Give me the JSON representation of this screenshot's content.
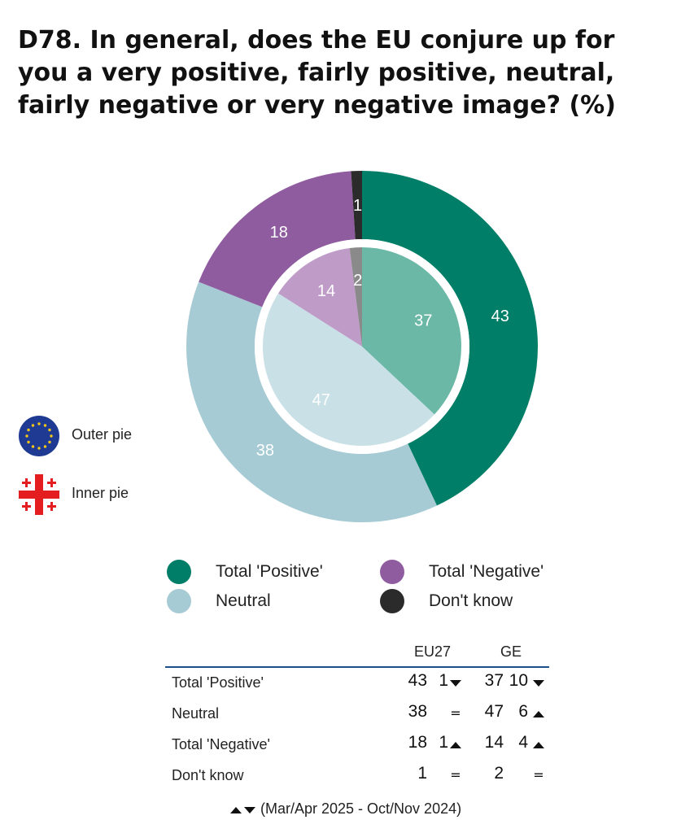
{
  "title": "D78. In general, does the EU conjure up for you a very positive, fairly positive, neutral, fairly negative or very negative image? (%)",
  "chart_data": {
    "type": "pie",
    "pie_labels": {
      "outer": "Outer pie",
      "inner": "Inner pie"
    },
    "categories": [
      "Total 'Positive'",
      "Neutral",
      "Total 'Negative'",
      "Don't know"
    ],
    "series": [
      {
        "name": "EU27",
        "values": [
          43,
          38,
          18,
          1
        ]
      },
      {
        "name": "GE",
        "values": [
          37,
          47,
          14,
          2
        ]
      }
    ],
    "colors": {
      "outer": [
        "#007E67",
        "#A7CBD4",
        "#905CA0",
        "#2B2B2B"
      ],
      "inner": [
        "#6BB8A7",
        "#C9E1E6",
        "#BF9CC8",
        "#8A8A8A"
      ]
    },
    "legend": [
      {
        "label": "Total 'Positive'",
        "color": "#007E67"
      },
      {
        "label": "Neutral",
        "color": "#A7CBD4"
      },
      {
        "label": "Total 'Negative'",
        "color": "#905CA0"
      },
      {
        "label": "Don't know",
        "color": "#2B2B2B"
      }
    ]
  },
  "table": {
    "columns": [
      "EU27",
      "GE"
    ],
    "rule_color": "#1f4e8c",
    "rows": [
      {
        "label": "Total 'Positive'",
        "eu_value": "43",
        "eu_change": "1",
        "eu_dir": "down",
        "ge_value": "37",
        "ge_change": "10",
        "ge_dir": "down"
      },
      {
        "label": "Neutral",
        "eu_value": "38",
        "eu_change": "",
        "eu_dir": "equal",
        "ge_value": "47",
        "ge_change": "6",
        "ge_dir": "up"
      },
      {
        "label": "Total 'Negative'",
        "eu_value": "18",
        "eu_change": "1",
        "eu_dir": "up",
        "ge_value": "14",
        "ge_change": "4",
        "ge_dir": "up"
      },
      {
        "label": "Don't know",
        "eu_value": "1",
        "eu_change": "",
        "eu_dir": "equal",
        "ge_value": "2",
        "ge_change": "",
        "ge_dir": "equal"
      }
    ],
    "equal_symbol": "="
  },
  "footnote": "(Mar/Apr 2025 - Oct/Nov 2024)",
  "icons": {
    "outer": "eu-flag-icon",
    "inner": "georgia-flag-icon",
    "trend_up": "triangle-up-icon",
    "trend_down": "triangle-down-icon"
  }
}
